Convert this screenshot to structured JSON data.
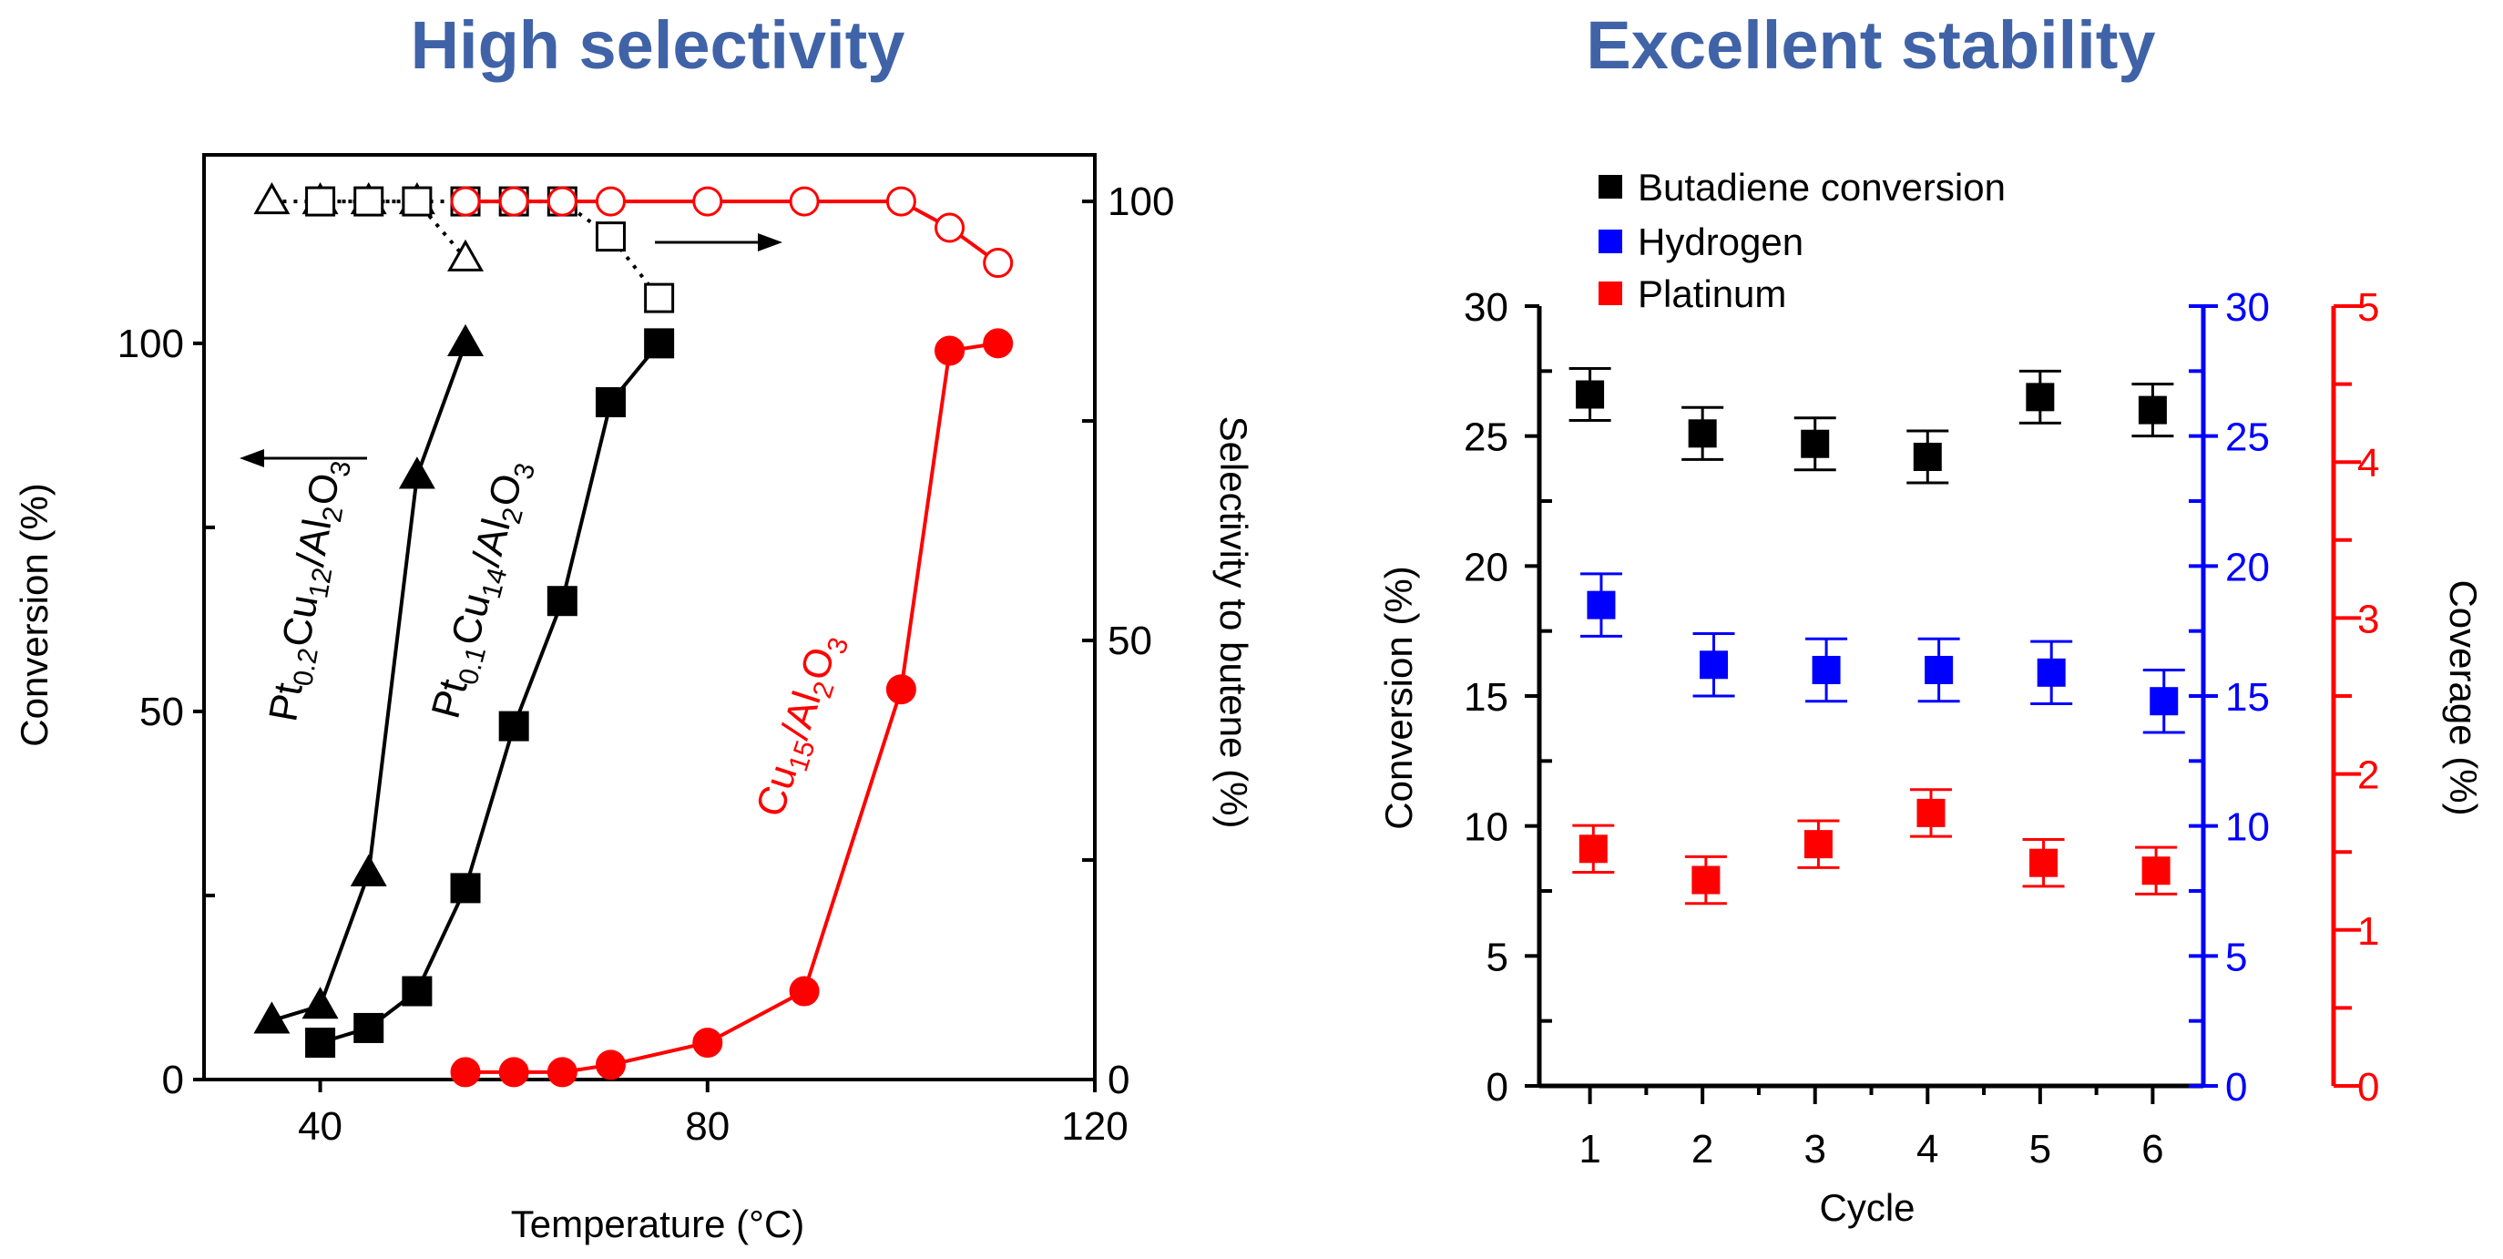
{
  "titles": {
    "left": "High selectivity",
    "right": "Excellent stability",
    "color": "#4063a8"
  },
  "chart_data": [
    {
      "type": "line",
      "title": "High selectivity",
      "xlabel": "Temperature (°C)",
      "ylabel": "Conversion (%)",
      "y2label": "Selectivity to butene (%)",
      "xlim": [
        28,
        120
      ],
      "ylim": [
        0,
        125.6
      ],
      "y2lim": [
        0,
        105.3
      ],
      "xticks": [
        "40",
        "80",
        "120"
      ],
      "yticks": [
        "0",
        "50",
        "100"
      ],
      "y2ticks": [
        "0",
        "50",
        "100"
      ],
      "series": [
        {
          "name": "Pt0.2Cu12/Al2O3 conversion",
          "axis": "left",
          "marker": "triangle",
          "filled": true,
          "color": "#000000",
          "x": [
            35,
            40,
            45,
            50,
            55
          ],
          "y": [
            8,
            10,
            28,
            82,
            100
          ]
        },
        {
          "name": "Pt0.1Cu14/Al2O3 conversion",
          "axis": "left",
          "marker": "square",
          "filled": true,
          "color": "#000000",
          "x": [
            40,
            45,
            50,
            55,
            60,
            65,
            70,
            75
          ],
          "y": [
            5,
            7,
            12,
            26,
            48,
            65,
            92,
            100
          ]
        },
        {
          "name": "Cu15/Al2O3 conversion",
          "axis": "left",
          "marker": "circle",
          "filled": true,
          "color": "#ff0000",
          "x": [
            55,
            60,
            65,
            70,
            80,
            90,
            100,
            105,
            110
          ],
          "y": [
            1,
            1,
            1,
            2,
            5,
            12,
            53,
            99,
            100
          ]
        },
        {
          "name": "Pt0.2Cu12/Al2O3 selectivity",
          "axis": "right",
          "marker": "triangle",
          "filled": false,
          "color": "#000000",
          "dotted": true,
          "x": [
            35,
            40,
            45,
            50,
            55
          ],
          "y": [
            100,
            100,
            100,
            100,
            93.5
          ]
        },
        {
          "name": "Pt0.1Cu14/Al2O3 selectivity",
          "axis": "right",
          "marker": "square",
          "filled": false,
          "color": "#000000",
          "dotted": true,
          "x": [
            40,
            45,
            50,
            55,
            60,
            65,
            70,
            75
          ],
          "y": [
            100,
            100,
            100,
            100,
            100,
            100,
            96,
            89
          ]
        },
        {
          "name": "Cu15/Al2O3 selectivity",
          "axis": "right",
          "marker": "circle",
          "filled": false,
          "color": "#ff0000",
          "dotted": false,
          "x": [
            55,
            60,
            65,
            70,
            80,
            90,
            100,
            105,
            110
          ],
          "y": [
            100,
            100,
            100,
            100,
            100,
            100,
            100,
            97,
            93
          ]
        }
      ],
      "series_labels": [
        {
          "parts": [
            {
              "t": "Pt"
            },
            {
              "t": "0.2",
              "sub": true
            },
            {
              "t": "Cu"
            },
            {
              "t": "12",
              "sub": true
            },
            {
              "t": "/Al"
            },
            {
              "t": "2",
              "sub": true
            },
            {
              "t": "O"
            },
            {
              "t": "3",
              "sub": true
            }
          ],
          "color": "#000000"
        },
        {
          "parts": [
            {
              "t": "Pt"
            },
            {
              "t": "0.1",
              "sub": true
            },
            {
              "t": "Cu"
            },
            {
              "t": "14",
              "sub": true
            },
            {
              "t": "/Al"
            },
            {
              "t": "2",
              "sub": true
            },
            {
              "t": "O"
            },
            {
              "t": "3",
              "sub": true
            }
          ],
          "color": "#000000"
        },
        {
          "parts": [
            {
              "t": "Cu"
            },
            {
              "t": "15",
              "sub": true
            },
            {
              "t": "/Al"
            },
            {
              "t": "2",
              "sub": true
            },
            {
              "t": "O"
            },
            {
              "t": "3",
              "sub": true
            }
          ],
          "color": "#ff0000"
        }
      ]
    },
    {
      "type": "scatter",
      "title": "Excellent stability",
      "xlabel": "Cycle",
      "ylabel": "Conversion (%)",
      "y3label": "Coverage (%)",
      "xlim": [
        0.55,
        6.45
      ],
      "ylim": [
        0,
        30
      ],
      "y2lim": [
        0,
        30
      ],
      "y3lim": [
        0,
        5
      ],
      "xticks": [
        "1",
        "2",
        "3",
        "4",
        "5",
        "6"
      ],
      "yticks": [
        "0",
        "5",
        "10",
        "15",
        "20",
        "25",
        "30"
      ],
      "y2ticks": [
        "0",
        "5",
        "10",
        "15",
        "20",
        "25",
        "30"
      ],
      "y3ticks": [
        "0",
        "1",
        "2",
        "3",
        "4",
        "5"
      ],
      "legend_position": "top-left",
      "series": [
        {
          "name": "Butadiene conversion",
          "axis": "left",
          "color": "#000000",
          "x": [
            1,
            2,
            3,
            4,
            5,
            6
          ],
          "y": [
            26.6,
            25.1,
            24.7,
            24.2,
            26.5,
            26.0
          ],
          "err": [
            1.0,
            1.0,
            1.0,
            1.0,
            1.0,
            1.0
          ]
        },
        {
          "name": "Hydrogen",
          "axis": "blue",
          "color": "#0000ff",
          "x": [
            1,
            2,
            3,
            4,
            5,
            6
          ],
          "y": [
            18.5,
            16.2,
            16.0,
            16.0,
            15.9,
            14.8
          ],
          "err": [
            1.2,
            1.2,
            1.2,
            1.2,
            1.2,
            1.2
          ]
        },
        {
          "name": "Platinum",
          "axis": "red",
          "color": "#ff0000",
          "x": [
            1,
            2,
            3,
            4,
            5,
            6
          ],
          "y": [
            1.52,
            1.32,
            1.55,
            1.75,
            1.43,
            1.38
          ],
          "err": [
            0.15,
            0.15,
            0.15,
            0.15,
            0.15,
            0.15
          ]
        }
      ]
    }
  ]
}
